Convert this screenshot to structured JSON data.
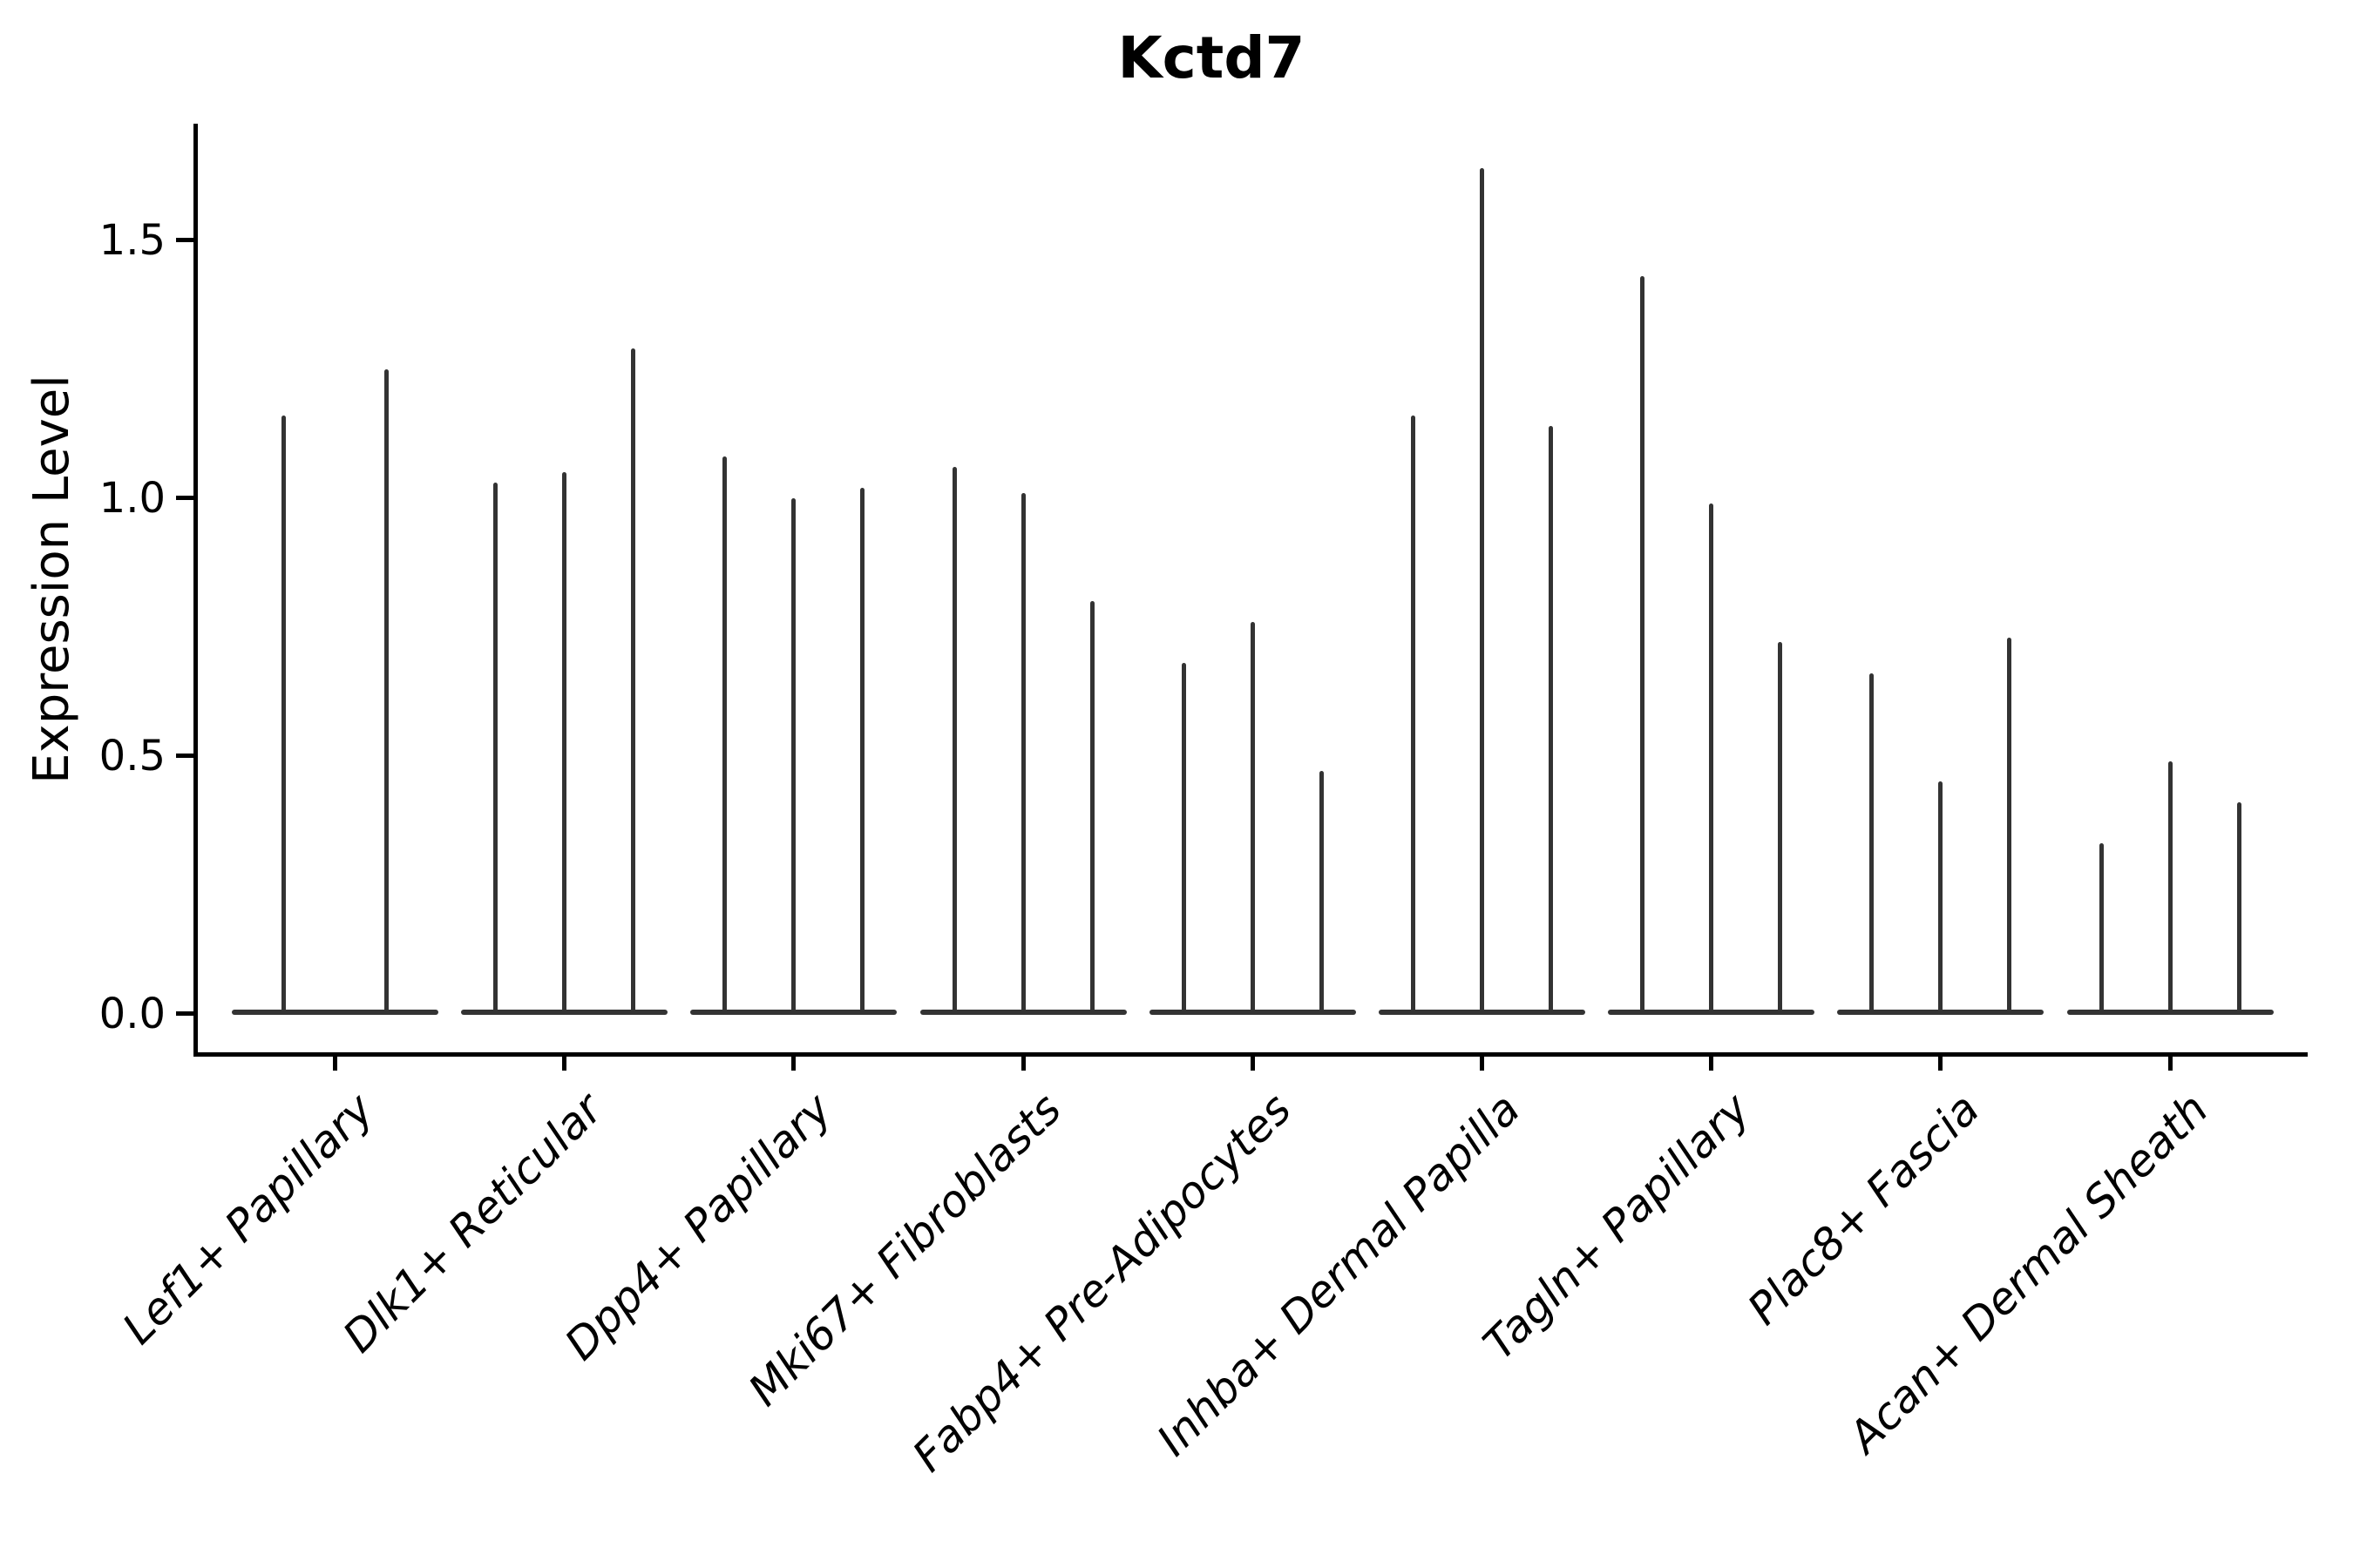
{
  "chart_data": {
    "type": "violin",
    "title": "Kctd7",
    "ylabel": "Expression Level",
    "xlabel": "",
    "ylim": [
      -0.08,
      1.73
    ],
    "grid": false,
    "legend": null,
    "x_tick_rotation_deg": 45,
    "x_tick_font_style": "italic",
    "violin_style": "each violin collapses to a thin vertical spike (peak expression) rising from a wide flat base at 0",
    "y_ticks": [
      {
        "label": "0.0",
        "value": 0.0
      },
      {
        "label": "0.5",
        "value": 0.5
      },
      {
        "label": "1.0",
        "value": 1.0
      },
      {
        "label": "1.5",
        "value": 1.5
      }
    ],
    "categories": [
      "Lef1+ Papillary",
      "Dlk1+ Reticular",
      "Dpp4+ Papillary",
      "Mki67+ Fibroblasts",
      "Fabp4+ Pre-Adipocytes",
      "Inhba+ Dermal Papilla",
      "Tagln+ Papillary",
      "Plac8+ Fascia",
      "Acan+ Dermal Sheath"
    ],
    "groups": [
      {
        "label": "Lef1+ Papillary",
        "violin_peaks": [
          1.16,
          1.25
        ]
      },
      {
        "label": "Dlk1+ Reticular",
        "violin_peaks": [
          1.03,
          1.05,
          1.29
        ]
      },
      {
        "label": "Dpp4+ Papillary",
        "violin_peaks": [
          1.08,
          1.0,
          1.02
        ]
      },
      {
        "label": "Mki67+ Fibroblasts",
        "violin_peaks": [
          1.06,
          1.01,
          0.8
        ]
      },
      {
        "label": "Fabp4+ Pre-Adipocytes",
        "violin_peaks": [
          0.68,
          0.76,
          0.47
        ]
      },
      {
        "label": "Inhba+ Dermal Papilla",
        "violin_peaks": [
          1.16,
          1.64,
          1.14
        ]
      },
      {
        "label": "Tagln+ Papillary",
        "violin_peaks": [
          1.43,
          0.99,
          0.72
        ]
      },
      {
        "label": "Plac8+ Fascia",
        "violin_peaks": [
          0.66,
          0.45,
          0.73
        ]
      },
      {
        "label": "Acan+ Dermal Sheath",
        "violin_peaks": [
          0.33,
          0.49,
          0.41
        ]
      }
    ],
    "colors": {
      "violin": "#333333",
      "axis": "#000000",
      "text": "#000000",
      "background": "#ffffff"
    }
  }
}
